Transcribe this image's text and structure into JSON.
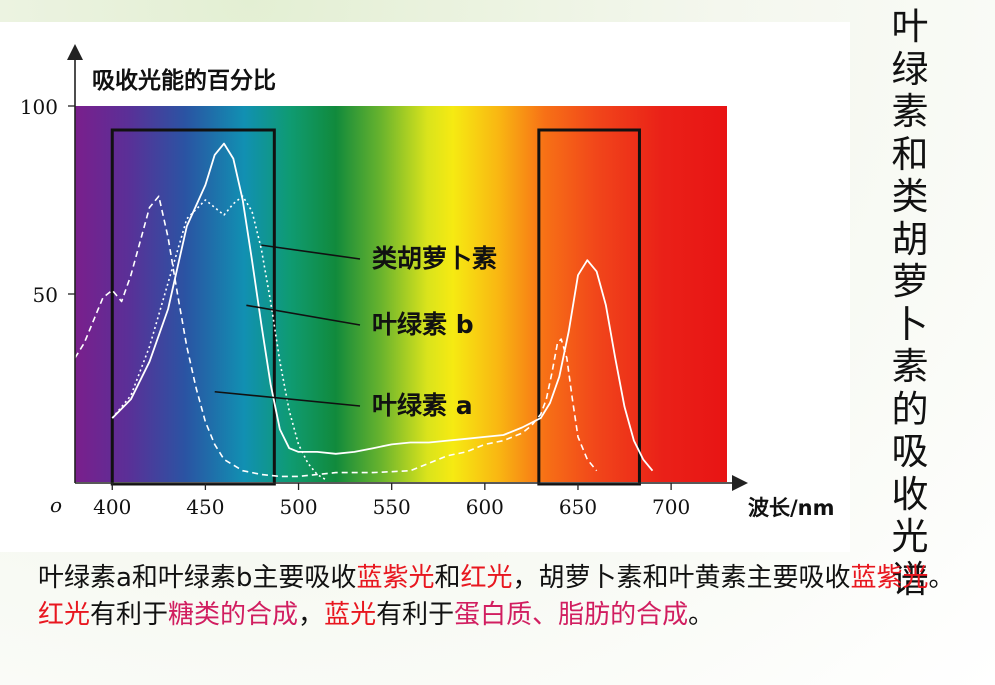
{
  "side_title": "叶绿素和类胡萝卜素的吸收光谱",
  "caption": {
    "segments": [
      {
        "text": "叶绿素a和叶绿素b主要吸收",
        "color": "default"
      },
      {
        "text": "蓝紫光",
        "color": "red"
      },
      {
        "text": "和",
        "color": "default"
      },
      {
        "text": "红光",
        "color": "red"
      },
      {
        "text": "，胡萝卜素和叶黄素主要吸收",
        "color": "default"
      },
      {
        "text": "蓝紫光",
        "color": "red"
      },
      {
        "text": "。",
        "color": "default"
      },
      {
        "text": "红光",
        "color": "red"
      },
      {
        "text": "有利于",
        "color": "default"
      },
      {
        "text": "糖类的合成",
        "color": "magenta"
      },
      {
        "text": "，",
        "color": "default"
      },
      {
        "text": "蓝光",
        "color": "red"
      },
      {
        "text": "有利于",
        "color": "default"
      },
      {
        "text": "蛋白质、脂肪的合成",
        "color": "magenta"
      },
      {
        "text": "。",
        "color": "default"
      }
    ],
    "colors": {
      "default": "#111111",
      "red": "#e8171f",
      "magenta": "#d11e60"
    }
  },
  "chart_data": {
    "type": "line",
    "ylabel": "吸收光能的百分比",
    "xlabel": "波长/nm",
    "origin_label": "o",
    "xlim": [
      380,
      730
    ],
    "ylim": [
      0,
      100
    ],
    "x_ticks": [
      400,
      450,
      500,
      550,
      600,
      650,
      700
    ],
    "y_ticks": [
      50,
      100
    ],
    "highlight_ranges": [
      [
        400,
        487
      ],
      [
        629,
        683
      ]
    ],
    "series": [
      {
        "name": "类胡萝卜素",
        "style": "dotted",
        "label_anchor": [
          480,
          63
        ],
        "points": [
          [
            400,
            17
          ],
          [
            410,
            23
          ],
          [
            420,
            36
          ],
          [
            430,
            53
          ],
          [
            440,
            70
          ],
          [
            450,
            75
          ],
          [
            455,
            73
          ],
          [
            460,
            71
          ],
          [
            465,
            74
          ],
          [
            470,
            76
          ],
          [
            475,
            72
          ],
          [
            480,
            62
          ],
          [
            485,
            48
          ],
          [
            490,
            32
          ],
          [
            495,
            19
          ],
          [
            500,
            10
          ],
          [
            505,
            5
          ],
          [
            510,
            2
          ],
          [
            515,
            0.5
          ]
        ]
      },
      {
        "name": "叶绿素 b",
        "style": "solid",
        "label_anchor": [
          472,
          47
        ],
        "points": [
          [
            400,
            17
          ],
          [
            410,
            22
          ],
          [
            420,
            32
          ],
          [
            430,
            46
          ],
          [
            440,
            68
          ],
          [
            450,
            79
          ],
          [
            455,
            87
          ],
          [
            460,
            90
          ],
          [
            465,
            86
          ],
          [
            470,
            75
          ],
          [
            475,
            59
          ],
          [
            480,
            42
          ],
          [
            485,
            26
          ],
          [
            490,
            14
          ],
          [
            495,
            9
          ],
          [
            500,
            8
          ],
          [
            510,
            8
          ],
          [
            520,
            7.5
          ],
          [
            530,
            8
          ],
          [
            540,
            9
          ],
          [
            550,
            10
          ],
          [
            560,
            10.5
          ],
          [
            570,
            10.5
          ],
          [
            580,
            11
          ],
          [
            590,
            11.5
          ],
          [
            600,
            12
          ],
          [
            610,
            12.5
          ],
          [
            620,
            14.5
          ],
          [
            630,
            17
          ],
          [
            635,
            21
          ],
          [
            640,
            28
          ],
          [
            645,
            40
          ],
          [
            650,
            55
          ],
          [
            655,
            59
          ],
          [
            660,
            56
          ],
          [
            665,
            47
          ],
          [
            670,
            33
          ],
          [
            675,
            20
          ],
          [
            680,
            11
          ],
          [
            685,
            6
          ],
          [
            690,
            3
          ]
        ]
      },
      {
        "name": "叶绿素 a",
        "style": "dashed",
        "label_anchor": [
          455,
          24
        ],
        "points": [
          [
            380,
            33
          ],
          [
            385,
            37
          ],
          [
            390,
            43
          ],
          [
            395,
            49
          ],
          [
            400,
            51
          ],
          [
            405,
            48
          ],
          [
            410,
            55
          ],
          [
            415,
            64
          ],
          [
            420,
            73
          ],
          [
            425,
            76
          ],
          [
            430,
            65
          ],
          [
            435,
            50
          ],
          [
            440,
            36
          ],
          [
            445,
            25
          ],
          [
            450,
            16
          ],
          [
            455,
            10
          ],
          [
            460,
            6
          ],
          [
            470,
            3
          ],
          [
            480,
            2
          ],
          [
            490,
            1.5
          ],
          [
            500,
            1.5
          ],
          [
            510,
            2
          ],
          [
            520,
            2.5
          ],
          [
            540,
            2.5
          ],
          [
            560,
            3
          ],
          [
            570,
            5
          ],
          [
            580,
            7
          ],
          [
            590,
            8
          ],
          [
            600,
            10
          ],
          [
            610,
            11
          ],
          [
            620,
            13
          ],
          [
            625,
            15
          ],
          [
            630,
            18
          ],
          [
            633,
            22
          ],
          [
            636,
            29
          ],
          [
            639,
            37
          ],
          [
            641,
            38
          ],
          [
            644,
            33
          ],
          [
            647,
            22
          ],
          [
            650,
            12
          ],
          [
            655,
            6
          ],
          [
            660,
            3
          ]
        ]
      }
    ]
  }
}
